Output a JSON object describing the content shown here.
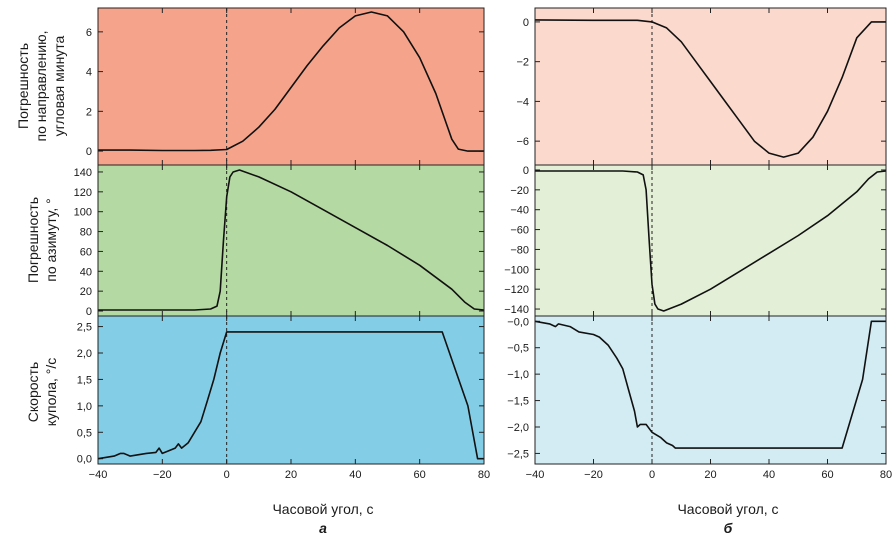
{
  "figure": {
    "y_labels": {
      "a_top": [
        "Погрешность",
        "по направлению,",
        "угловая минута"
      ],
      "a_mid": [
        "Погрешность",
        "по азимуту, °"
      ],
      "a_bot": [
        "Скорость",
        "купола, °/с"
      ]
    },
    "x_label": "Часовой угол, с",
    "subfig_labels": [
      "а",
      "б"
    ]
  },
  "chart_data": [
    {
      "id": "a_top",
      "type": "line",
      "bg": "#f5a48b",
      "xlim": [
        -40,
        80
      ],
      "ylim": [
        -0.7,
        7.2
      ],
      "xticks": [
        -40,
        -20,
        0,
        20,
        40,
        60,
        80
      ],
      "yticks": [
        0,
        2,
        4,
        6
      ],
      "ytick_labels": [
        "0",
        "2",
        "4",
        "6"
      ],
      "series": [
        {
          "x": [
            -40,
            -30,
            -20,
            -10,
            -5,
            0,
            5,
            10,
            15,
            20,
            25,
            30,
            35,
            40,
            45,
            50,
            55,
            60,
            65,
            70,
            72,
            75,
            80
          ],
          "y": [
            0.05,
            0.05,
            0.03,
            0.03,
            0.04,
            0.08,
            0.5,
            1.2,
            2.1,
            3.2,
            4.3,
            5.3,
            6.2,
            6.8,
            7.0,
            6.8,
            6.0,
            4.7,
            2.9,
            0.6,
            0.1,
            0.0,
            0.0
          ]
        }
      ]
    },
    {
      "id": "a_mid",
      "type": "line",
      "bg": "#b5d9a2",
      "xlim": [
        -40,
        80
      ],
      "ylim": [
        -5,
        147
      ],
      "xticks": [
        -40,
        -20,
        0,
        20,
        40,
        60,
        80
      ],
      "yticks": [
        0,
        20,
        40,
        60,
        80,
        100,
        120,
        140
      ],
      "ytick_labels": [
        "0",
        "20",
        "40",
        "60",
        "80",
        "100",
        "120",
        "140"
      ],
      "series": [
        {
          "x": [
            -40,
            -20,
            -10,
            -5,
            -3,
            -2,
            -1,
            0,
            1,
            2,
            4,
            10,
            20,
            30,
            40,
            50,
            60,
            70,
            74,
            77,
            80
          ],
          "y": [
            1,
            1,
            1,
            2,
            5,
            20,
            70,
            115,
            135,
            140,
            142,
            135,
            120,
            102,
            84,
            66,
            46,
            22,
            9,
            2,
            1
          ]
        }
      ]
    },
    {
      "id": "a_bot",
      "type": "line",
      "bg": "#84cde6",
      "xlim": [
        -40,
        80
      ],
      "ylim": [
        -0.1,
        2.7
      ],
      "xticks": [
        -40,
        -20,
        0,
        20,
        40,
        60,
        80
      ],
      "yticks": [
        0,
        0.5,
        1.0,
        1.5,
        2.0,
        2.5
      ],
      "ytick_labels": [
        "0,0",
        "0,5",
        "1,0",
        "1,5",
        "2,0",
        "2,5"
      ],
      "series": [
        {
          "x": [
            -40,
            -35,
            -33,
            -32,
            -30,
            -25,
            -22,
            -21,
            -20,
            -18,
            -16,
            -15,
            -14,
            -12,
            -10,
            -8,
            -6,
            -4,
            -2,
            0,
            67,
            75,
            78,
            80
          ],
          "y": [
            0.0,
            0.05,
            0.1,
            0.1,
            0.05,
            0.1,
            0.12,
            0.2,
            0.1,
            0.15,
            0.2,
            0.28,
            0.2,
            0.3,
            0.5,
            0.7,
            1.1,
            1.5,
            2.0,
            2.4,
            2.4,
            1.0,
            0.0,
            0.0
          ]
        }
      ]
    },
    {
      "id": "b_top",
      "type": "line",
      "bg": "#fbd9cd",
      "xlim": [
        -40,
        80
      ],
      "ylim": [
        -7.2,
        0.7
      ],
      "xticks": [
        -40,
        -20,
        0,
        20,
        40,
        60,
        80
      ],
      "yticks": [
        0,
        -2,
        -4,
        -6
      ],
      "ytick_labels": [
        "0",
        "−2",
        "−4",
        "−6"
      ],
      "series": [
        {
          "x": [
            -40,
            -20,
            -5,
            0,
            5,
            10,
            15,
            20,
            25,
            30,
            35,
            40,
            45,
            50,
            55,
            60,
            65,
            70,
            75,
            80
          ],
          "y": [
            0.1,
            0.08,
            0.08,
            0.0,
            -0.3,
            -1.0,
            -2.0,
            -3.0,
            -4.0,
            -5.0,
            -6.0,
            -6.6,
            -6.8,
            -6.6,
            -5.8,
            -4.5,
            -2.8,
            -0.8,
            0.0,
            0.0
          ]
        }
      ]
    },
    {
      "id": "b_mid",
      "type": "line",
      "bg": "#e3f0d7",
      "xlim": [
        -40,
        80
      ],
      "ylim": [
        -147,
        5
      ],
      "xticks": [
        -40,
        -20,
        0,
        20,
        40,
        60,
        80
      ],
      "yticks": [
        0,
        -20,
        -40,
        -60,
        -80,
        -100,
        -120,
        -140
      ],
      "ytick_labels": [
        "0",
        "−20",
        "−40",
        "−60",
        "−80",
        "−100",
        "−120",
        "−140"
      ],
      "series": [
        {
          "x": [
            -40,
            -20,
            -10,
            -5,
            -3,
            -2,
            -1,
            0,
            1,
            2,
            4,
            10,
            20,
            30,
            40,
            50,
            60,
            70,
            74,
            77,
            80
          ],
          "y": [
            -1,
            -1,
            -1,
            -2,
            -5,
            -20,
            -70,
            -115,
            -135,
            -140,
            -142,
            -135,
            -120,
            -102,
            -84,
            -66,
            -46,
            -22,
            -9,
            -2,
            -1
          ]
        }
      ]
    },
    {
      "id": "b_bot",
      "type": "line",
      "bg": "#d3ecf4",
      "xlim": [
        -40,
        80
      ],
      "ylim": [
        -2.7,
        0.1
      ],
      "xticks": [
        -40,
        -20,
        0,
        20,
        40,
        60,
        80
      ],
      "yticks": [
        0,
        -0.5,
        -1.0,
        -1.5,
        -2.0,
        -2.5
      ],
      "ytick_labels": [
        "−0,0",
        "−0,5",
        "−1,0",
        "−1,5",
        "−2,0",
        "−2,5"
      ],
      "series": [
        {
          "x": [
            -40,
            -35,
            -33,
            -32,
            -28,
            -25,
            -20,
            -18,
            -15,
            -12,
            -10,
            -8,
            -6,
            -5,
            -4,
            -2,
            0,
            3,
            5,
            7,
            8,
            10,
            65,
            72,
            75,
            80
          ],
          "y": [
            0.0,
            -0.05,
            -0.1,
            -0.05,
            -0.1,
            -0.2,
            -0.25,
            -0.3,
            -0.45,
            -0.7,
            -0.9,
            -1.3,
            -1.7,
            -2.0,
            -1.95,
            -1.95,
            -2.1,
            -2.2,
            -2.3,
            -2.35,
            -2.4,
            -2.4,
            -2.4,
            -1.1,
            0.0,
            0.0
          ]
        }
      ]
    }
  ]
}
